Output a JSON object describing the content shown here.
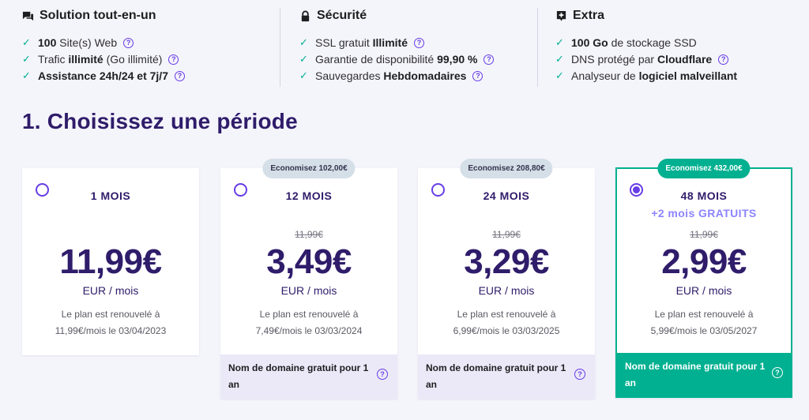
{
  "features": {
    "col1": {
      "title": "Solution tout-en-un",
      "icon": "chat-icon",
      "items": [
        {
          "pre": "",
          "bold": "100",
          "post": " Site(s) Web",
          "help": true
        },
        {
          "pre": "Trafic ",
          "bold": "illimité",
          "post": " (Go illimité)",
          "help": true
        },
        {
          "pre": "",
          "bold": "Assistance 24h/24 et 7j/7",
          "post": "",
          "help": true
        }
      ]
    },
    "col2": {
      "title": "Sécurité",
      "icon": "lock-icon",
      "items": [
        {
          "pre": "SSL gratuit ",
          "bold": "Illimité",
          "post": "",
          "help": true
        },
        {
          "pre": "Garantie de disponibilité ",
          "bold": "99,90 %",
          "post": "",
          "help": true
        },
        {
          "pre": "Sauvegardes ",
          "bold": "Hebdomadaires",
          "post": "",
          "help": true
        }
      ]
    },
    "col3": {
      "title": "Extra",
      "icon": "plus-badge-icon",
      "items": [
        {
          "pre": "",
          "bold": "100 Go",
          "post": " de stockage SSD",
          "help": false
        },
        {
          "pre": "DNS protégé par ",
          "bold": "Cloudflare",
          "post": "",
          "help": true
        },
        {
          "pre": "Analyseur de ",
          "bold": "logiciel malveillant",
          "post": "",
          "help": false
        }
      ]
    }
  },
  "section": {
    "title": "1. Choisissez une période"
  },
  "plans": [
    {
      "period": "1 MOIS",
      "bonus": "",
      "badge": "",
      "old_price": "",
      "price": "11,99€",
      "unit": "EUR / mois",
      "renew_line1": "Le plan est renouvelé à",
      "renew_line2": "11,99€/mois le 03/04/2023",
      "domain": "",
      "selected": false
    },
    {
      "period": "12 MOIS",
      "bonus": "",
      "badge": "Economisez 102,00€",
      "old_price": "11,99€",
      "price": "3,49€",
      "unit": "EUR / mois",
      "renew_line1": "Le plan est renouvelé à",
      "renew_line2": "7,49€/mois le 03/03/2024",
      "domain": "Nom de domaine gratuit pour 1 an",
      "selected": false
    },
    {
      "period": "24 MOIS",
      "bonus": "",
      "badge": "Economisez 208,80€",
      "old_price": "11,99€",
      "price": "3,29€",
      "unit": "EUR / mois",
      "renew_line1": "Le plan est renouvelé à",
      "renew_line2": "6,99€/mois le 03/03/2025",
      "domain": "Nom de domaine gratuit pour 1 an",
      "selected": false
    },
    {
      "period": "48 MOIS",
      "bonus": "+2 mois GRATUITS",
      "badge": "Economisez 432,00€",
      "old_price": "11,99€",
      "price": "2,99€",
      "unit": "EUR / mois",
      "renew_line1": "Le plan est renouvelé à",
      "renew_line2": "5,99€/mois le 03/05/2027",
      "domain": "Nom de domaine gratuit pour 1 an",
      "selected": true
    }
  ],
  "colors": {
    "accent": "#673de6",
    "success": "#00b090",
    "heading": "#2f1c6a",
    "background": "#f4f4fb"
  }
}
